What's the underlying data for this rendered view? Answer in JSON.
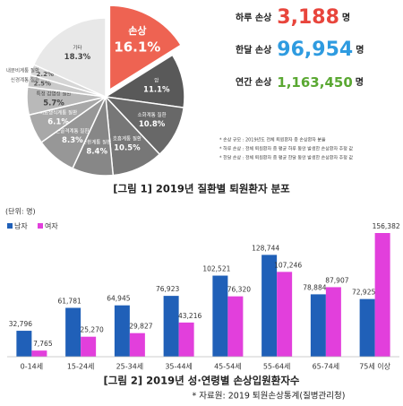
{
  "chart_data": [
    {
      "type": "pie",
      "caption": "[그림 1] 2019년 질환별 퇴원환자 분포",
      "categories": [
        "손상",
        "암",
        "소화계통 질환",
        "호흡계통 질환",
        "순환계통 질환",
        "근골격계통 질환",
        "비뇨생식계통 질환",
        "특정 감염성 질환",
        "신경계통 질환",
        "내분비계통 질환",
        "기타"
      ],
      "values": [
        16.1,
        11.1,
        10.8,
        10.5,
        8.4,
        8.3,
        6.1,
        5.7,
        2.5,
        2.2,
        18.3
      ],
      "value_labels": [
        "16.1%",
        "11.1%",
        "10.8%",
        "10.5%",
        "8.4%",
        "8.3%",
        "6.1%",
        "5.7%",
        "2.5%",
        "2.2%",
        "18.3%"
      ],
      "colors": [
        "#ee6352",
        "#595959",
        "#686868",
        "#777777",
        "#878787",
        "#979797",
        "#a8a8a8",
        "#b9b9b9",
        "#cacaca",
        "#d6d6d6",
        "#e8e8e8"
      ],
      "explode": 0,
      "stats": [
        {
          "label": "하루 손상",
          "value": "3,188",
          "unit": "명",
          "color": "#e8453c"
        },
        {
          "label": "한달 손상",
          "value": "96,954",
          "unit": "명",
          "color": "#2e9be0"
        },
        {
          "label": "연간 손상",
          "value": "1,163,450",
          "unit": "명",
          "color": "#5aa832"
        }
      ],
      "notes": [
        "* 손상 규모 : 2019년도 전체 퇴원환자 중 손상환자 분율",
        "* 하루 손상 : 전체 퇴원환자 중 평균 하루 동안 발생한 손상환자 추정 값",
        "* 한달 손상 : 전체 퇴원환자 중 평균 한달 동안 발생한 손상환자 추정 값"
      ]
    },
    {
      "type": "bar",
      "caption": "[그림 2] 2019년 성·연령별 손상입원환자수",
      "source": "* 자료원: 2019 퇴원손상통계(질병관리청)",
      "unit_label": "(단위: 명)",
      "categories": [
        "0-14세",
        "15-24세",
        "25-34세",
        "35-44세",
        "45-54세",
        "55-64세",
        "65-74세",
        "75세 이상"
      ],
      "series": [
        {
          "name": "남자",
          "color": "#2060b8",
          "values": [
            32796,
            61781,
            64945,
            76923,
            102521,
            128744,
            78884,
            72925
          ],
          "value_labels": [
            "32,796",
            "61,781",
            "64,945",
            "76,923",
            "102,521",
            "128,744",
            "78,884",
            "72,925"
          ]
        },
        {
          "name": "여자",
          "color": "#e23fdc",
          "values": [
            7765,
            25270,
            29827,
            43216,
            76320,
            107246,
            87907,
            156382
          ],
          "value_labels": [
            "7,765",
            "25,270",
            "29,827",
            "43,216",
            "76,320",
            "107,246",
            "87,907",
            "156,382"
          ]
        }
      ]
    }
  ]
}
